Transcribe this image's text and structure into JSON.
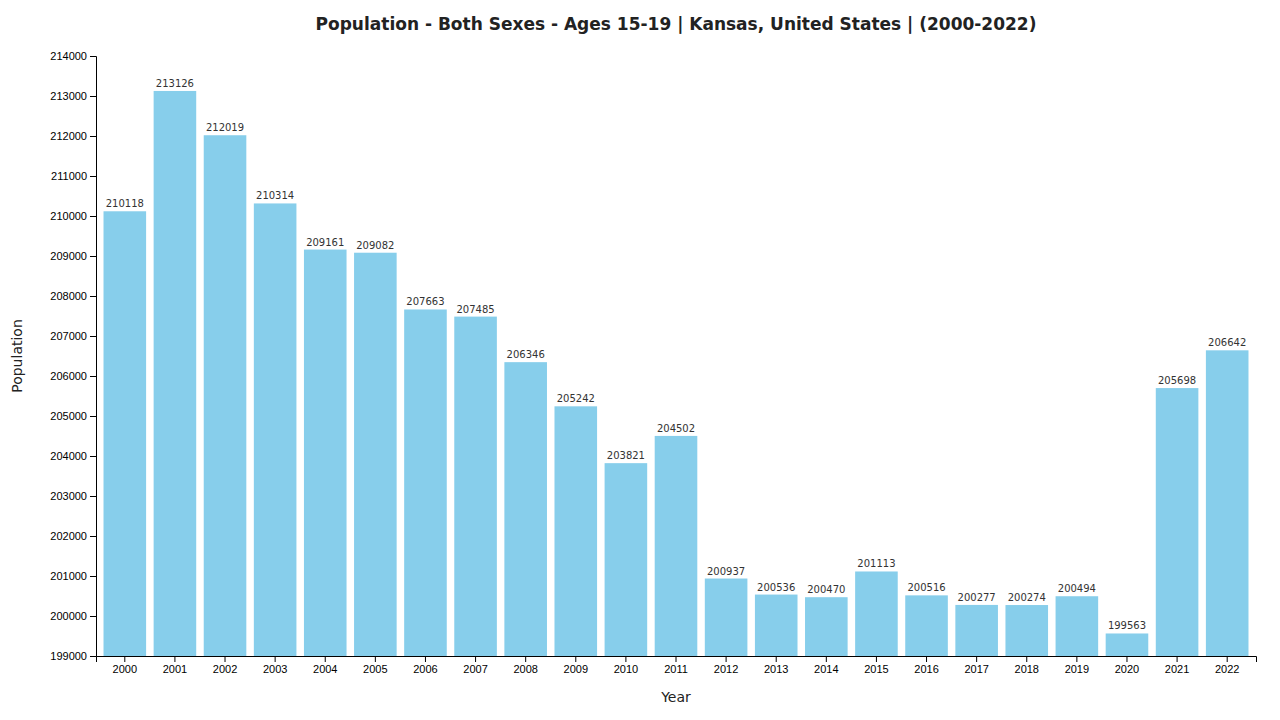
{
  "chart_data": {
    "type": "bar",
    "title": "Population - Both Sexes - Ages 15-19 | Kansas, United States |  (2000-2022)",
    "xlabel": "Year",
    "ylabel": "Population",
    "categories": [
      "2000",
      "2001",
      "2002",
      "2003",
      "2004",
      "2005",
      "2006",
      "2007",
      "2008",
      "2009",
      "2010",
      "2011",
      "2012",
      "2013",
      "2014",
      "2015",
      "2016",
      "2017",
      "2018",
      "2019",
      "2020",
      "2021",
      "2022"
    ],
    "values": [
      210118,
      213126,
      212019,
      210314,
      209161,
      209082,
      207663,
      207485,
      206346,
      205242,
      203821,
      204502,
      200937,
      200536,
      200470,
      201113,
      200516,
      200277,
      200274,
      200494,
      199563,
      205698,
      206642
    ],
    "color": "#87CEEB",
    "ylim": [
      199000,
      214000
    ],
    "yticks": [
      199000,
      200000,
      201000,
      202000,
      203000,
      204000,
      205000,
      206000,
      207000,
      208000,
      209000,
      210000,
      211000,
      212000,
      213000,
      214000
    ],
    "grid": false,
    "data_labels": true
  }
}
